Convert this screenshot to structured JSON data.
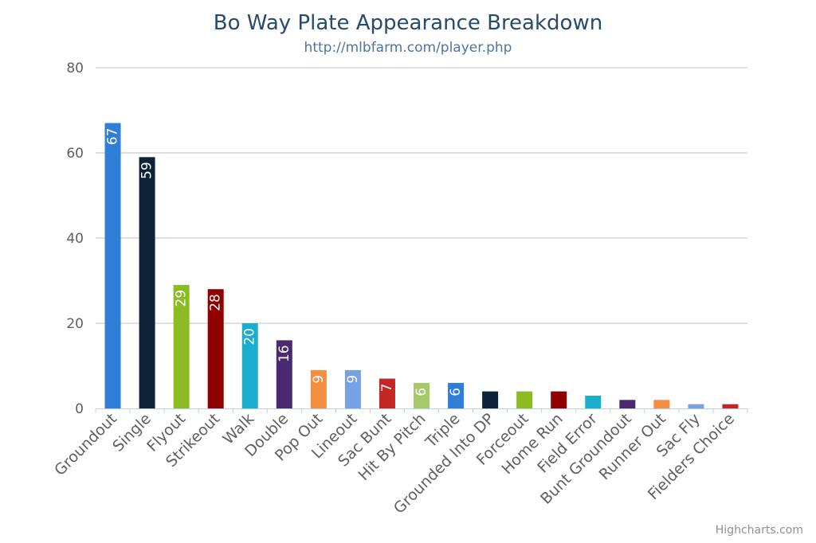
{
  "chart_data": {
    "type": "bar",
    "title": "Bo Way Plate Appearance Breakdown",
    "subtitle": "http://mlbfarm.com/player.php",
    "categories": [
      "Groundout",
      "Single",
      "Flyout",
      "Strikeout",
      "Walk",
      "Double",
      "Pop Out",
      "Lineout",
      "Sac Bunt",
      "Hit By Pitch",
      "Triple",
      "Grounded Into DP",
      "Forceout",
      "Home Run",
      "Field Error",
      "Bunt Groundout",
      "Runner Out",
      "Sac Fly",
      "Fielders Choice"
    ],
    "values": [
      67,
      59,
      29,
      28,
      20,
      16,
      9,
      9,
      7,
      6,
      6,
      4,
      4,
      4,
      3,
      2,
      2,
      1,
      1
    ],
    "data_labels": [
      "67",
      "59",
      "29",
      "28",
      "20",
      "16",
      "9",
      "9",
      "7",
      "6",
      "6",
      "",
      "",
      "",
      "",
      "",
      "",
      "",
      ""
    ],
    "colors": [
      "#2f7ed8",
      "#0d233a",
      "#8bbc21",
      "#910000",
      "#1aadce",
      "#492970",
      "#f28f43",
      "#77a1e5",
      "#c42525",
      "#a6c96a",
      "#2f7ed8",
      "#0d233a",
      "#8bbc21",
      "#910000",
      "#1aadce",
      "#492970",
      "#f28f43",
      "#77a1e5",
      "#c42525"
    ],
    "ylim": [
      0,
      80
    ],
    "yticks": [
      "0",
      "20",
      "40",
      "60",
      "80"
    ],
    "xlabel": "",
    "ylabel": "",
    "grid": true,
    "legend": "none"
  },
  "credits": "Highcharts.com"
}
